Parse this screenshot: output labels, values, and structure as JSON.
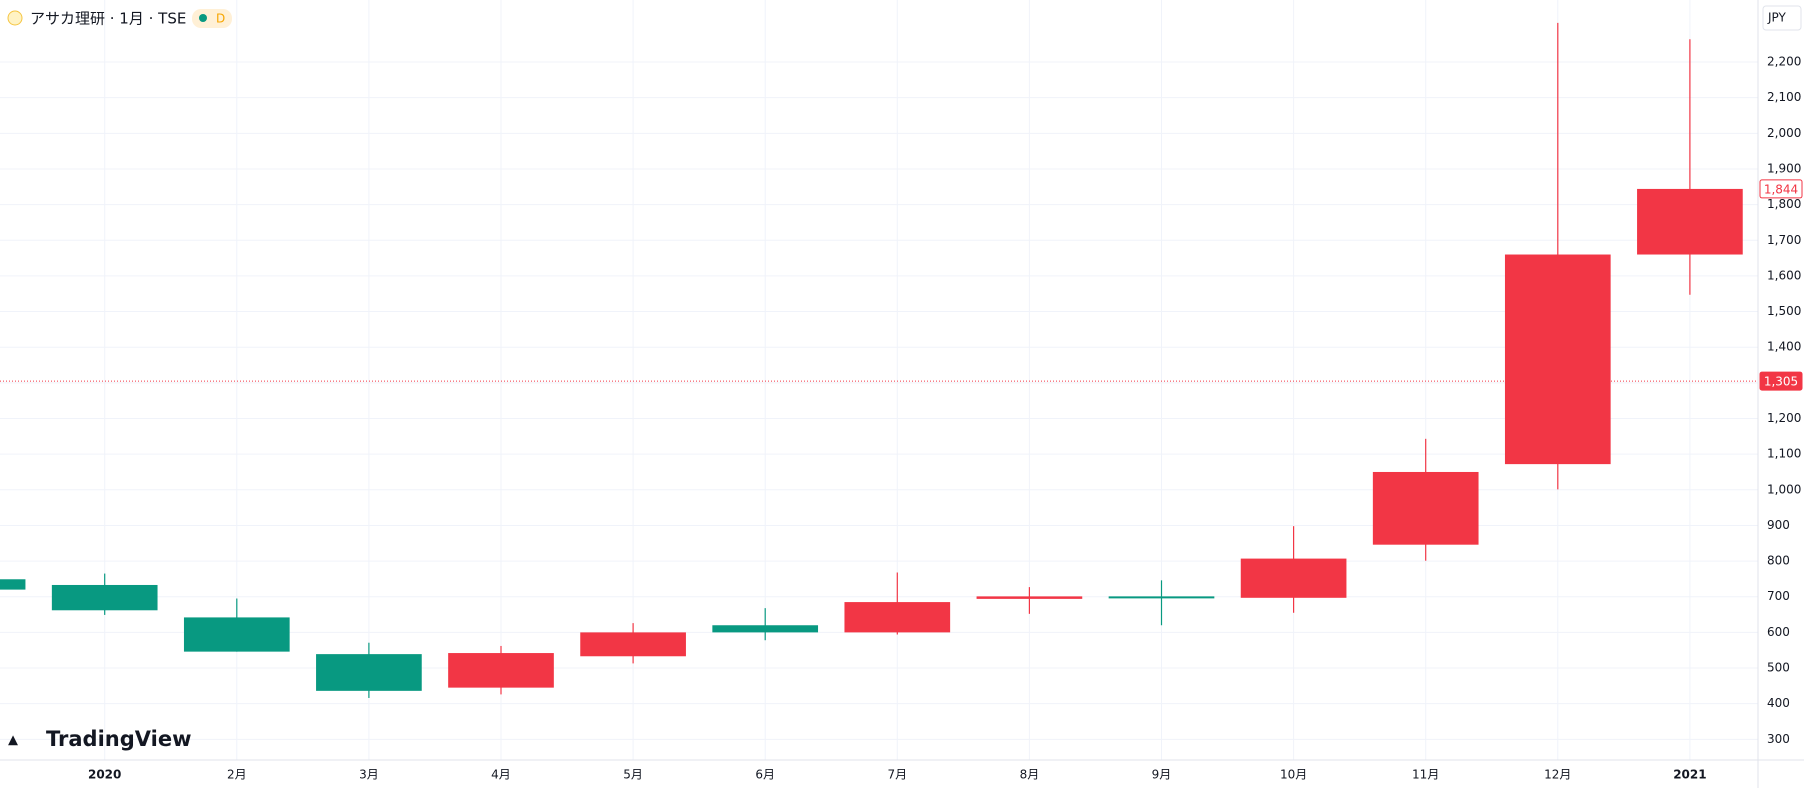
{
  "header": {
    "symbol": "アサカ理研 · 1月 · TSE",
    "badge": "D",
    "currency": "JPY",
    "logo": "TradingView"
  },
  "chart_data": {
    "type": "candlestick",
    "categories": [
      null,
      "2020",
      "2月",
      "3月",
      "4月",
      "5月",
      "6月",
      "7月",
      "8月",
      "9月",
      "10月",
      "11月",
      "12月",
      "2021"
    ],
    "open": [
      749,
      733,
      642,
      539,
      445,
      533,
      620,
      600,
      694,
      701,
      697,
      846,
      1072,
      1660
    ],
    "high": [
      749,
      765,
      695,
      571,
      562,
      626,
      668,
      768,
      727,
      746,
      898,
      1143,
      2310,
      2264
    ],
    "low": [
      720,
      649,
      546,
      416,
      426,
      513,
      578,
      594,
      652,
      620,
      655,
      801,
      1001,
      1547
    ],
    "close": [
      720,
      662,
      546,
      436,
      542,
      600,
      600,
      685,
      701,
      700,
      807,
      1050,
      1660,
      1844
    ],
    "up_color": "#f23645",
    "down_color": "#089981",
    "ylim": [
      242,
      2374
    ],
    "yticks": [
      300,
      400,
      500,
      600,
      700,
      800,
      900,
      {
        "value": 1000,
        "label": "1,000"
      },
      {
        "value": 1100,
        "label": "1,100"
      },
      {
        "value": 1200,
        "label": "1,200"
      },
      {
        "value": 1300,
        "label": "1,300"
      },
      {
        "value": 1400,
        "label": "1,400"
      },
      {
        "value": 1500,
        "label": "1,500"
      },
      {
        "value": 1600,
        "label": "1,600"
      },
      {
        "value": 1700,
        "label": "1,700"
      },
      {
        "value": 1800,
        "label": "1,800"
      },
      {
        "value": 1900,
        "label": "1,900"
      },
      {
        "value": 2000,
        "label": "2,000"
      },
      {
        "value": 2100,
        "label": "2,100"
      },
      {
        "value": 2200,
        "label": "2,200"
      }
    ],
    "price_lines": [
      {
        "value": 1844,
        "label": "1,844"
      },
      {
        "value": 1305,
        "label": "1,305"
      }
    ],
    "grid": true
  }
}
